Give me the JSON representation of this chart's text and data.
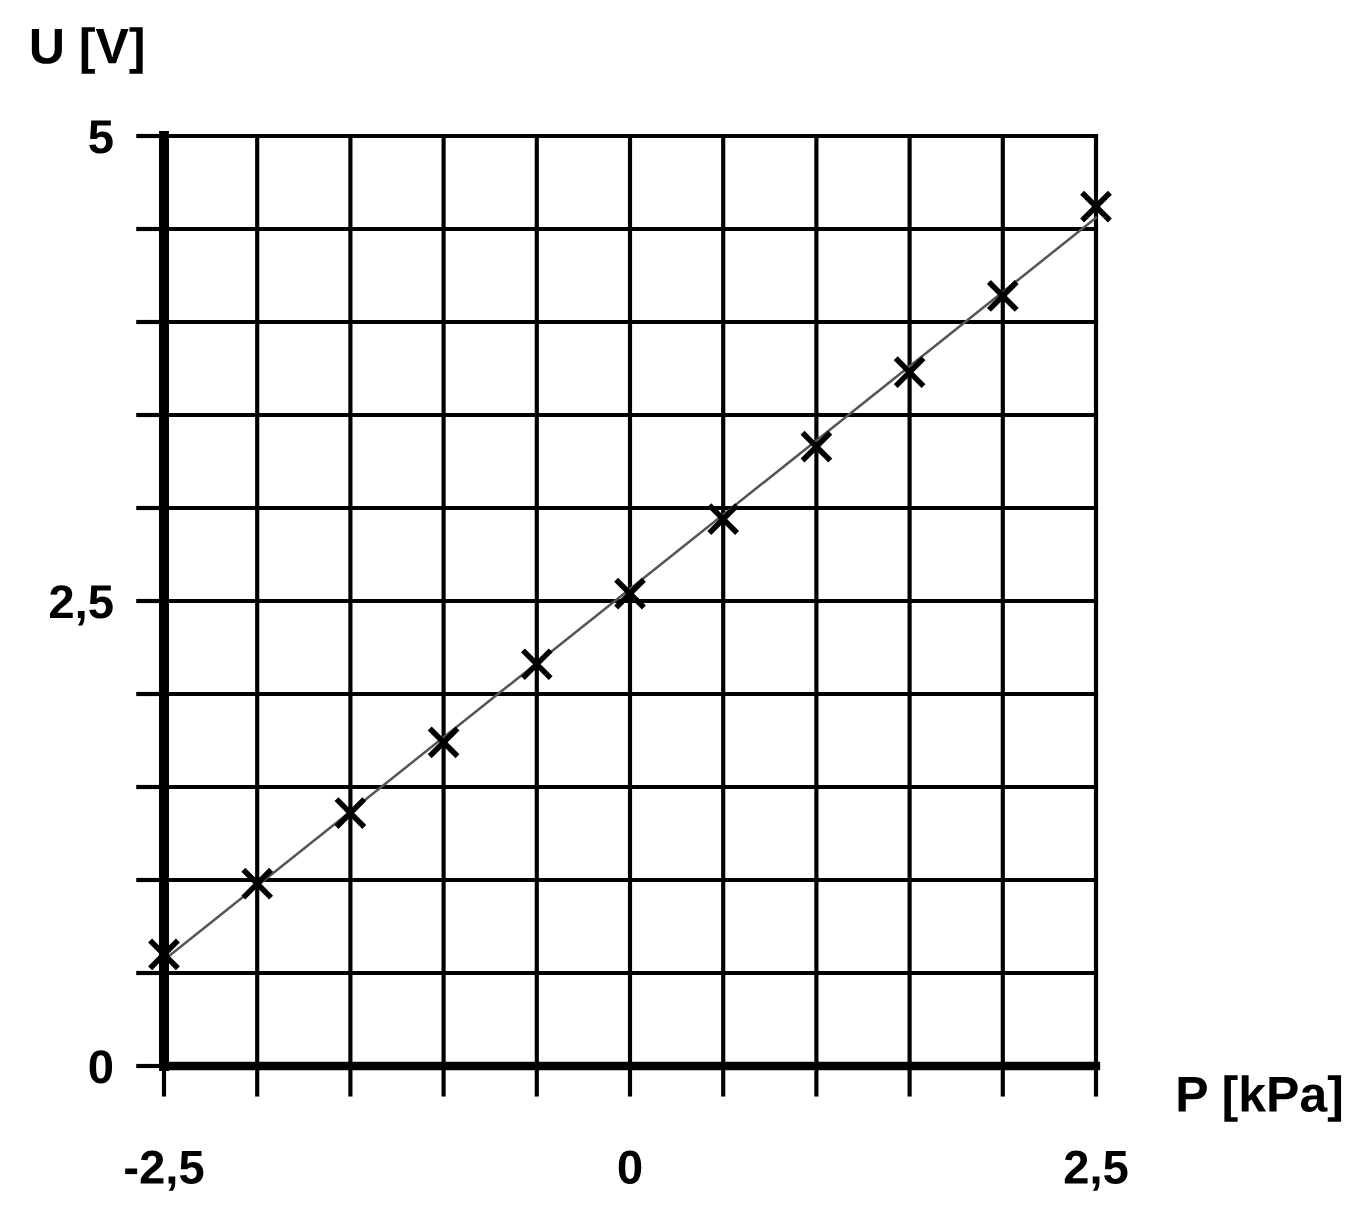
{
  "chart_data": {
    "type": "scatter",
    "xlabel": "P [kPa]",
    "ylabel": "U [V]",
    "xlim": [
      -2.5,
      2.5
    ],
    "ylim": [
      0,
      5
    ],
    "xticks": [
      {
        "value": -2.5,
        "label": "-2,5"
      },
      {
        "value": -2,
        "label": null
      },
      {
        "value": -1.5,
        "label": null
      },
      {
        "value": -1,
        "label": null
      },
      {
        "value": -0.5,
        "label": null
      },
      {
        "value": 0,
        "label": "0"
      },
      {
        "value": 0.5,
        "label": null
      },
      {
        "value": 1,
        "label": null
      },
      {
        "value": 1.5,
        "label": null
      },
      {
        "value": 2,
        "label": null
      },
      {
        "value": 2.5,
        "label": "2,5"
      }
    ],
    "yticks": [
      {
        "value": 0,
        "label": "0"
      },
      {
        "value": 0.5,
        "label": null
      },
      {
        "value": 1,
        "label": null
      },
      {
        "value": 1.5,
        "label": null
      },
      {
        "value": 2,
        "label": null
      },
      {
        "value": 2.5,
        "label": "2,5"
      },
      {
        "value": 3,
        "label": null
      },
      {
        "value": 3.5,
        "label": null
      },
      {
        "value": 4,
        "label": null
      },
      {
        "value": 4.5,
        "label": null
      },
      {
        "value": 5,
        "label": "5"
      }
    ],
    "grid": true,
    "marker": "cross",
    "series": [
      {
        "color": "#000000",
        "x": [
          -2.5,
          -2,
          -1.5,
          -1,
          -0.5,
          0,
          0.5,
          1,
          1.5,
          2,
          2.5
        ],
        "values": [
          0.6,
          0.98,
          1.36,
          1.74,
          2.16,
          2.54,
          2.94,
          3.33,
          3.73,
          4.14,
          4.62
        ]
      },
      {
        "type": "line",
        "color": "#555555",
        "marker": "none",
        "line_style": "solid",
        "x": [
          -2.5,
          2.5
        ],
        "values": [
          0.57,
          4.56
        ]
      }
    ]
  }
}
